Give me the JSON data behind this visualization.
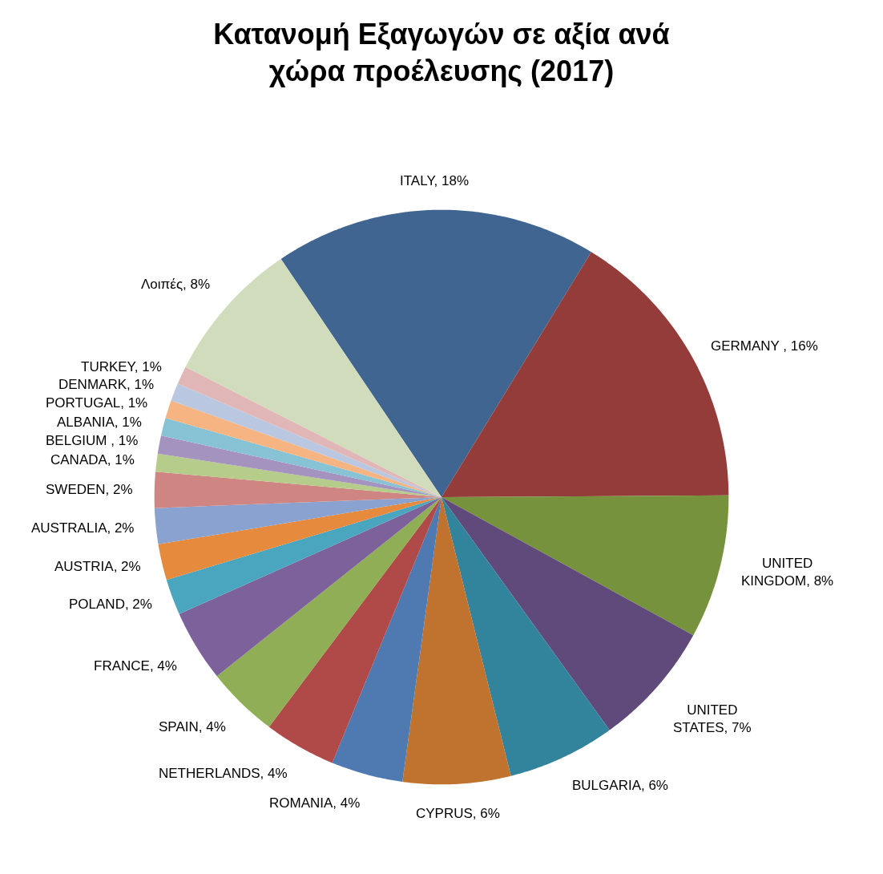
{
  "chart_data": {
    "type": "pie",
    "title": "Κατανομή Εξαγωγών σε αξία ανά χώρα προέλευσης (2017)",
    "categories": [
      "ITALY, 18%",
      "GERMANY , 16%",
      "UNITED KINGDOM, 8%",
      "UNITED STATES, 7%",
      "BULGARIA, 6%",
      "CYPRUS, 6%",
      "ROMANIA, 4%",
      "NETHERLANDS, 4%",
      "SPAIN, 4%",
      "FRANCE, 4%",
      "POLAND, 2%",
      "AUSTRIA, 2%",
      "AUSTRALIA, 2%",
      "SWEDEN, 2%",
      "CANADA, 1%",
      "BELGIUM , 1%",
      "ALBANIA, 1%",
      "PORTUGAL, 1%",
      "DENMARK, 1%",
      "TURKEY, 1%",
      "Λοιπές, 8%"
    ],
    "values": [
      18,
      16,
      8,
      7,
      6,
      6,
      4,
      4,
      4,
      4,
      2,
      2,
      2,
      2,
      1,
      1,
      1,
      1,
      1,
      1,
      8
    ],
    "colors": [
      "#3f6590",
      "#943c3a",
      "#76923c",
      "#604a7b",
      "#31849b",
      "#c0722f",
      "#4f79b1",
      "#b04a48",
      "#8fae55",
      "#7c619b",
      "#4aa5be",
      "#e68a3e",
      "#8aa2cf",
      "#cf8582",
      "#b5cc8a",
      "#a593bf",
      "#87c2d5",
      "#f5b482",
      "#b9c7e0",
      "#e0b7b6",
      "#d0dcbb"
    ]
  }
}
